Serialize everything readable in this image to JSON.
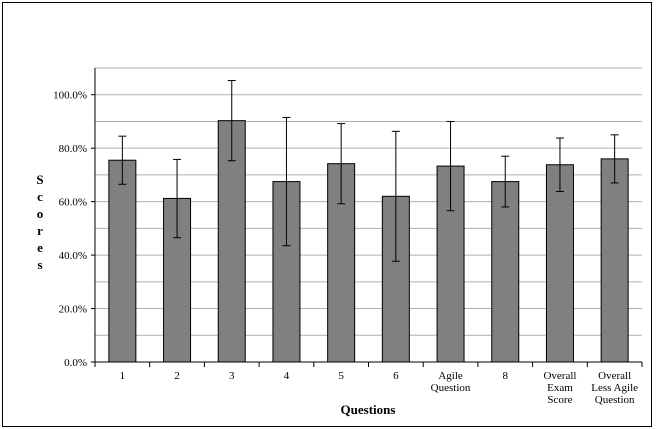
{
  "chart_data": {
    "type": "bar",
    "title": "",
    "xlabel": "Questions",
    "ylabel": "Scores",
    "ylim": [
      0,
      110
    ],
    "grid": true,
    "y_ticks": [
      "0.0%",
      "20.0%",
      "40.0%",
      "60.0%",
      "80.0%",
      "100.0%"
    ],
    "categories": [
      "1",
      "2",
      "3",
      "4",
      "5",
      "6",
      "Agile\nQuestion",
      "8",
      "Overall\nExam\nScore",
      "Overall\nLess Agile\nQuestion"
    ],
    "values": [
      75.5,
      61.2,
      90.3,
      67.5,
      74.2,
      62.0,
      73.3,
      67.5,
      73.8,
      76.0
    ],
    "error_high": [
      84.5,
      75.8,
      105.3,
      91.5,
      89.2,
      86.3,
      90.0,
      77.0,
      83.8,
      85.0
    ],
    "error_low": [
      66.5,
      46.5,
      75.3,
      43.5,
      59.2,
      37.7,
      56.6,
      58.0,
      63.8,
      67.0
    ],
    "bar_color": "#808080"
  }
}
